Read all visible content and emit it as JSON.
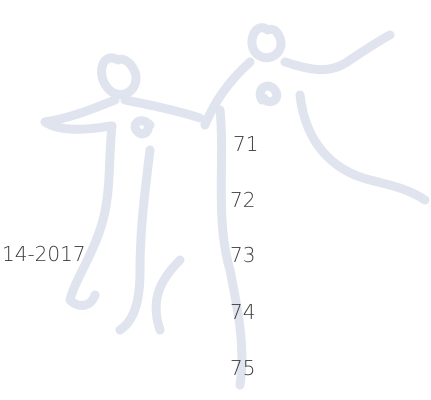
{
  "side_text": "14-2017",
  "page_numbers": [
    "71",
    "72",
    "73",
    "74",
    "75"
  ]
}
